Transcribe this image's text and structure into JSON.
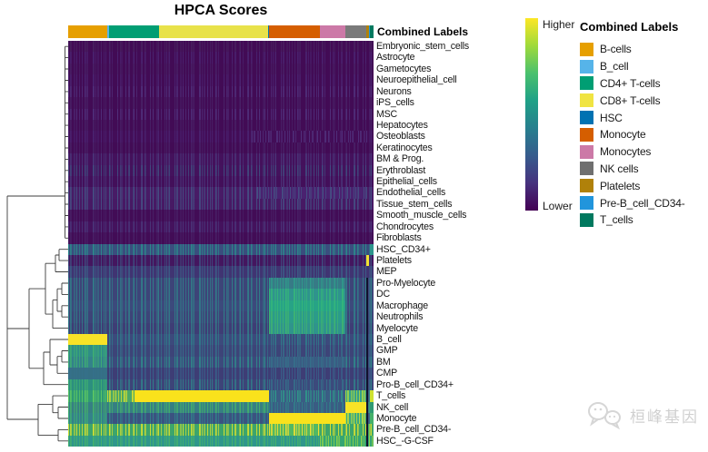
{
  "title": "HPCA Scores",
  "column_annotation_title": "Combined Labels",
  "colorbar": {
    "higher_label": "Higher",
    "lower_label": "Lower",
    "stops": [
      "#FDE725",
      "#9FDA3A",
      "#4AC16D",
      "#1FA187",
      "#277F8E",
      "#365C8D",
      "#46327E",
      "#440154"
    ]
  },
  "legend": {
    "title": "Combined Labels",
    "items": [
      {
        "label": "B-cells",
        "color": "#E69F00"
      },
      {
        "label": "B_cell",
        "color": "#56B4E9"
      },
      {
        "label": "CD4+ T-cells",
        "color": "#009E73"
      },
      {
        "label": "CD8+ T-cells",
        "color": "#F0E442"
      },
      {
        "label": "HSC",
        "color": "#0072B2"
      },
      {
        "label": "Monocyte",
        "color": "#D55E00"
      },
      {
        "label": "Monocytes",
        "color": "#CC79A7"
      },
      {
        "label": "NK cells",
        "color": "#6F6F6F"
      },
      {
        "label": "Platelets",
        "color": "#B0810A"
      },
      {
        "label": "Pre-B_cell_CD34-",
        "color": "#2195DC"
      },
      {
        "label": "T_cells",
        "color": "#00795F"
      }
    ]
  },
  "watermark": {
    "text": "桓峰基因"
  },
  "chart_data": {
    "type": "heatmap",
    "title": "HPCA Scores",
    "value_scale": {
      "high_label": "Higher",
      "low_label": "Lower",
      "palette": "viridis"
    },
    "column_annotation": {
      "label": "Combined Labels",
      "segments": [
        {
          "name": "B-cells",
          "color": "#E69F00",
          "f": 0,
          "t": 0.128
        },
        {
          "name": "B_cell",
          "color": "#56B4E9",
          "f": 0.128,
          "t": 0.133
        },
        {
          "name": "CD4+ T-cells",
          "color": "#009E73",
          "f": 0.133,
          "t": 0.298
        },
        {
          "name": "CD8+ T-cells",
          "color": "#E8E24A",
          "f": 0.298,
          "t": 0.656
        },
        {
          "name": "HSC",
          "color": "#0072B2",
          "f": 0.656,
          "t": 0.659
        },
        {
          "name": "Monocyte",
          "color": "#D55E00",
          "f": 0.659,
          "t": 0.824
        },
        {
          "name": "Monocytes",
          "color": "#CC79A7",
          "f": 0.824,
          "t": 0.908
        },
        {
          "name": "NK cells",
          "color": "#7A7A7A",
          "f": 0.908,
          "t": 0.976
        },
        {
          "name": "Platelets",
          "color": "#B0810A",
          "f": 0.976,
          "t": 0.985
        },
        {
          "name": "Pre-B_cell_CD34-",
          "color": "#2195DC",
          "f": 0.985,
          "t": 0.988
        },
        {
          "name": "T_cells",
          "color": "#00795F",
          "f": 0.988,
          "t": 1
        }
      ]
    },
    "rows": [
      {
        "label": "Embryonic_stem_cells",
        "segments": [
          {
            "f": 0,
            "t": 1,
            "c": "#420B55",
            "s": "#48205F"
          }
        ]
      },
      {
        "label": "Astrocyte",
        "segments": [
          {
            "f": 0,
            "t": 1,
            "c": "#420B55",
            "s": "#4A2370"
          }
        ]
      },
      {
        "label": "Gametocytes",
        "segments": [
          {
            "f": 0,
            "t": 1,
            "c": "#420B55",
            "s": "#482066"
          }
        ]
      },
      {
        "label": "Neuroepithelial_cell",
        "segments": [
          {
            "f": 0,
            "t": 1,
            "c": "#420B55",
            "s": "#4A2370"
          }
        ]
      },
      {
        "label": "Neurons",
        "segments": [
          {
            "f": 0,
            "t": 1,
            "c": "#420B55",
            "s": "#50307B"
          }
        ]
      },
      {
        "label": "iPS_cells",
        "segments": [
          {
            "f": 0,
            "t": 1,
            "c": "#420B55",
            "s": "#482066"
          }
        ]
      },
      {
        "label": "MSC",
        "segments": [
          {
            "f": 0,
            "t": 1,
            "c": "#420B55",
            "s": "#50307B"
          }
        ]
      },
      {
        "label": "Hepatocytes",
        "segments": [
          {
            "f": 0,
            "t": 1,
            "c": "#420B55",
            "s": "#482066"
          }
        ]
      },
      {
        "label": "Osteoblasts",
        "segments": [
          {
            "f": 0,
            "t": 1,
            "c": "#430D58",
            "s": "#4A2370"
          },
          {
            "f": 0.6,
            "t": 0.98,
            "c": "#430D58",
            "s": "#50307B"
          }
        ]
      },
      {
        "label": "Keratinocytes",
        "segments": [
          {
            "f": 0,
            "t": 1,
            "c": "#420B55",
            "s": "#482066"
          }
        ]
      },
      {
        "label": "BM & Prog.",
        "segments": [
          {
            "f": 0,
            "t": 1,
            "c": "#44115C",
            "s": "#4A3579"
          }
        ]
      },
      {
        "label": "Erythroblast",
        "segments": [
          {
            "f": 0,
            "t": 1,
            "c": "#44125D",
            "s": "#414B80"
          }
        ]
      },
      {
        "label": "Epithelial_cells",
        "segments": [
          {
            "f": 0,
            "t": 1,
            "c": "#430F5A",
            "s": "#4A3579"
          }
        ]
      },
      {
        "label": "Endothelial_cells",
        "segments": [
          {
            "f": 0,
            "t": 1,
            "c": "#481B66",
            "s": "#455084"
          },
          {
            "f": 0.62,
            "t": 0.98,
            "c": "#4A2270",
            "s": "#455084"
          }
        ]
      },
      {
        "label": "Tissue_stem_cells",
        "segments": [
          {
            "f": 0,
            "t": 1,
            "c": "#471964",
            "s": "#455084"
          }
        ]
      },
      {
        "label": "Smooth_muscle_cells",
        "segments": [
          {
            "f": 0,
            "t": 1,
            "c": "#420C56",
            "s": "#482066"
          }
        ]
      },
      {
        "label": "Chondrocytes",
        "segments": [
          {
            "f": 0,
            "t": 1,
            "c": "#44125D",
            "s": "#4A3579"
          }
        ]
      },
      {
        "label": "Fibroblasts",
        "segments": [
          {
            "f": 0,
            "t": 1,
            "c": "#420C56",
            "s": "#482066"
          }
        ]
      },
      {
        "label": "HSC_CD34+",
        "segments": [
          {
            "f": 0,
            "t": 1,
            "c": "#3A4E7E",
            "s": "#2B8B8C"
          },
          {
            "f": 0.988,
            "t": 1,
            "c": "#2E968D"
          }
        ]
      },
      {
        "label": "Platelets",
        "segments": [
          {
            "f": 0,
            "t": 1,
            "c": "#44165F",
            "s": "#3F4A7E"
          },
          {
            "f": 0.976,
            "t": 0.985,
            "c": "#F2E032"
          }
        ]
      },
      {
        "label": "MEP",
        "segments": [
          {
            "f": 0,
            "t": 1,
            "c": "#403472",
            "s": "#3B5F87"
          }
        ]
      },
      {
        "label": "Pro-Myelocyte",
        "segments": [
          {
            "f": 0,
            "t": 1,
            "c": "#3D4478",
            "s": "#31808A"
          },
          {
            "f": 0.658,
            "t": 0.908,
            "c": "#377A86",
            "s": "#2F9A8A"
          },
          {
            "f": 0.977,
            "t": 0.983,
            "c": "#12122E"
          }
        ]
      },
      {
        "label": "DC",
        "segments": [
          {
            "f": 0,
            "t": 1,
            "c": "#3D4478",
            "s": "#31808A"
          },
          {
            "f": 0.658,
            "t": 0.908,
            "c": "#2F938D",
            "s": "#35B779"
          },
          {
            "f": 0.977,
            "t": 0.983,
            "c": "#12122E"
          }
        ]
      },
      {
        "label": "Macrophage",
        "segments": [
          {
            "f": 0,
            "t": 1,
            "c": "#3C4A7C",
            "s": "#317E89"
          },
          {
            "f": 0.658,
            "t": 0.908,
            "c": "#27A386",
            "s": "#35B779"
          },
          {
            "f": 0.977,
            "t": 0.983,
            "c": "#12122E"
          }
        ]
      },
      {
        "label": "Neutrophils",
        "segments": [
          {
            "f": 0,
            "t": 1,
            "c": "#3D4478",
            "s": "#31808A"
          },
          {
            "f": 0.658,
            "t": 0.908,
            "c": "#2B9B8A",
            "s": "#3FB56F"
          },
          {
            "f": 0.977,
            "t": 0.983,
            "c": "#12122E"
          }
        ]
      },
      {
        "label": "Myelocyte",
        "segments": [
          {
            "f": 0,
            "t": 1,
            "c": "#3E3D75",
            "s": "#337A88"
          },
          {
            "f": 0.658,
            "t": 0.908,
            "c": "#2F948C",
            "s": "#3FB56F"
          },
          {
            "f": 0.977,
            "t": 0.983,
            "c": "#12122E"
          }
        ]
      },
      {
        "label": "B_cell",
        "segments": [
          {
            "f": 0,
            "t": 1,
            "c": "#3C4A7C",
            "s": "#2F7F8B"
          },
          {
            "f": 0,
            "t": 0.128,
            "c": "#F7E327"
          },
          {
            "f": 0.977,
            "t": 0.983,
            "c": "#12122E"
          }
        ]
      },
      {
        "label": "GMP",
        "segments": [
          {
            "f": 0,
            "t": 1,
            "c": "#3D4478",
            "s": "#35708A"
          },
          {
            "f": 0,
            "t": 0.128,
            "c": "#2F8E86",
            "s": "#3FAE72"
          },
          {
            "f": 0.977,
            "t": 0.983,
            "c": "#12122E"
          }
        ]
      },
      {
        "label": "BM",
        "segments": [
          {
            "f": 0,
            "t": 1,
            "c": "#3C4A7C",
            "s": "#2F8A8B"
          },
          {
            "f": 0,
            "t": 0.128,
            "c": "#33828A",
            "s": "#3FAE72"
          },
          {
            "f": 0.658,
            "t": 0.908,
            "c": "#3A5C83",
            "s": "#35708A"
          },
          {
            "f": 0.977,
            "t": 0.983,
            "c": "#12122E"
          }
        ]
      },
      {
        "label": "CMP",
        "segments": [
          {
            "f": 0,
            "t": 1,
            "c": "#3E3D75",
            "s": "#38628A"
          },
          {
            "f": 0,
            "t": 0.128,
            "c": "#356F85",
            "s": "#35708A"
          },
          {
            "f": 0.977,
            "t": 0.983,
            "c": "#12122E"
          }
        ]
      },
      {
        "label": "Pro-B_cell_CD34+",
        "segments": [
          {
            "f": 0,
            "t": 1,
            "c": "#3D4478",
            "s": "#31808A"
          },
          {
            "f": 0,
            "t": 0.128,
            "c": "#2C8F7F",
            "s": "#3FAE72"
          },
          {
            "f": 0.658,
            "t": 0.908,
            "c": "#3C4A7C",
            "s": "#35708A"
          },
          {
            "f": 0.977,
            "t": 0.983,
            "c": "#12122E"
          }
        ]
      },
      {
        "label": "T_cells",
        "segments": [
          {
            "f": 0,
            "t": 1,
            "c": "#3A5D84",
            "s": "#2F9A8A"
          },
          {
            "f": 0,
            "t": 0.128,
            "c": "#2F9A74",
            "s": "#5EC962"
          },
          {
            "f": 0.128,
            "t": 0.217,
            "c": "#4AA768",
            "s": "#D8E030"
          },
          {
            "f": 0.217,
            "t": 0.658,
            "c": "#F9E21C"
          },
          {
            "f": 0.908,
            "t": 0.976,
            "c": "#35A08A",
            "s": "#B5DD3A"
          },
          {
            "f": 0.988,
            "t": 1,
            "c": "#CFE231"
          },
          {
            "f": 0.977,
            "t": 0.983,
            "c": "#12122E"
          }
        ]
      },
      {
        "label": "NK_cell",
        "segments": [
          {
            "f": 0,
            "t": 1,
            "c": "#367F83",
            "s": "#45B16B"
          },
          {
            "f": 0.658,
            "t": 0.908,
            "c": "#3A5C83",
            "s": "#317E89"
          },
          {
            "f": 0.908,
            "t": 0.976,
            "c": "#F7E327"
          },
          {
            "f": 0.988,
            "t": 1,
            "c": "#2F9A74"
          },
          {
            "f": 0.977,
            "t": 0.983,
            "c": "#12122E"
          }
        ]
      },
      {
        "label": "Monocyte",
        "segments": [
          {
            "f": 0,
            "t": 1,
            "c": "#3B5280",
            "s": "#31808A"
          },
          {
            "f": 0,
            "t": 0.128,
            "c": "#34818A",
            "s": "#3FAE72"
          },
          {
            "f": 0.658,
            "t": 0.908,
            "c": "#F9E21C"
          },
          {
            "f": 0.908,
            "t": 0.976,
            "c": "#3BA981",
            "s": "#CFE231"
          },
          {
            "f": 0.988,
            "t": 1,
            "c": "#45B16B"
          },
          {
            "f": 0.977,
            "t": 0.983,
            "c": "#12122E"
          }
        ]
      },
      {
        "label": "Pre-B_cell_CD34-",
        "segments": [
          {
            "f": 0,
            "t": 1,
            "c": "#3DA56B",
            "s": "#D8E030"
          },
          {
            "f": 0.658,
            "t": 0.824,
            "c": "#52B863",
            "s": "#F2E032"
          },
          {
            "f": 0.977,
            "t": 0.983,
            "c": "#12122E"
          }
        ]
      },
      {
        "label": "HSC_-G-CSF",
        "segments": [
          {
            "f": 0,
            "t": 1,
            "c": "#2F968C",
            "s": "#45B16B"
          },
          {
            "f": 0.824,
            "t": 1,
            "c": "#35A573",
            "s": "#8FD24A"
          },
          {
            "f": 0.977,
            "t": 0.983,
            "c": "#12122E"
          }
        ]
      }
    ]
  }
}
